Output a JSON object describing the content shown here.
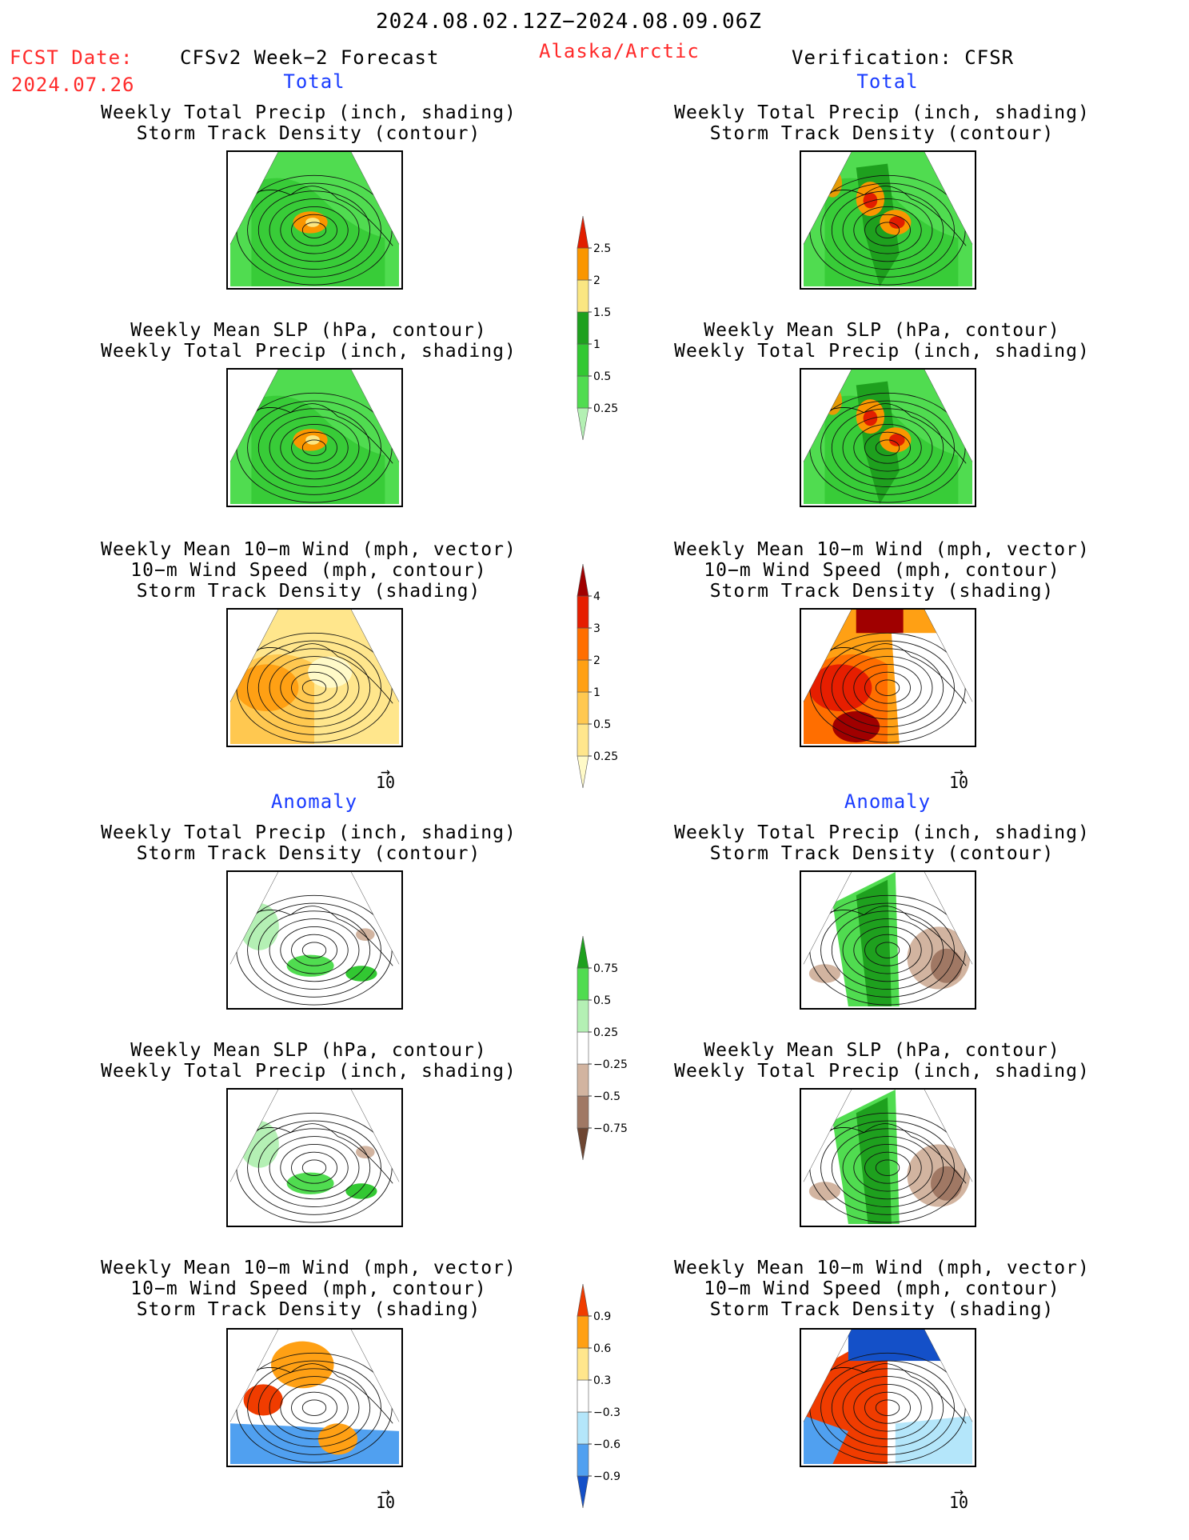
{
  "header": {
    "date_range": "2024.08.02.12Z−2024.08.09.06Z",
    "fcst_label": "FCST Date:",
    "fcst_date": "2024.07.26",
    "product": "CFSv2 Week−2 Forecast",
    "region": "Alaska/Arctic",
    "verification": "Verification: CFSR"
  },
  "sections": {
    "total": "Total",
    "anomaly": "Anomaly"
  },
  "panel_titles": {
    "precip_track": [
      "Weekly Total Precip (inch, shading)",
      "Storm Track Density (contour)"
    ],
    "slp_precip": [
      "Weekly Mean SLP (hPa, contour)",
      "Weekly Total Precip (inch, shading)"
    ],
    "wind_track": [
      "Weekly Mean 10−m Wind (mph, vector)",
      "10−m Wind Speed (mph, contour)",
      "Storm Track Density (shading)"
    ]
  },
  "vector_ref": "10",
  "colors": {
    "title_red": "#ff2a2a",
    "section_blue": "#1a3cff"
  },
  "chart_data": [
    {
      "type": "heatmap",
      "name": "precip_colorbar_total",
      "levels": [
        "0.25",
        "0.5",
        "1",
        "1.5",
        "2",
        "2.5"
      ],
      "colors": [
        "#b4f0b4",
        "#50dc50",
        "#32c832",
        "#1ea01e",
        "#fae682",
        "#fa9600",
        "#e11e00"
      ]
    },
    {
      "type": "heatmap",
      "name": "track_colorbar_total",
      "levels": [
        "0.25",
        "0.5",
        "1",
        "2",
        "3",
        "4"
      ],
      "colors": [
        "#fffac8",
        "#ffe68c",
        "#ffc850",
        "#ffa014",
        "#ff6e00",
        "#e61e00",
        "#a00000"
      ]
    },
    {
      "type": "heatmap",
      "name": "precip_colorbar_anomaly",
      "levels": [
        "−0.75",
        "−0.5",
        "−0.25",
        "0.25",
        "0.5",
        "0.75"
      ],
      "colors": [
        "#6e4632",
        "#a07864",
        "#d2b4a0",
        "#ffffff",
        "#b4f0b4",
        "#50dc50",
        "#1ea01e"
      ]
    },
    {
      "type": "heatmap",
      "name": "track_colorbar_anomaly",
      "levels": [
        "−0.9",
        "−0.6",
        "−0.3",
        "0.3",
        "0.6",
        "0.9"
      ],
      "colors": [
        "#1450c8",
        "#50a0f0",
        "#b4e6fa",
        "#ffffff",
        "#ffe68c",
        "#ffa014",
        "#f03c00"
      ]
    }
  ]
}
